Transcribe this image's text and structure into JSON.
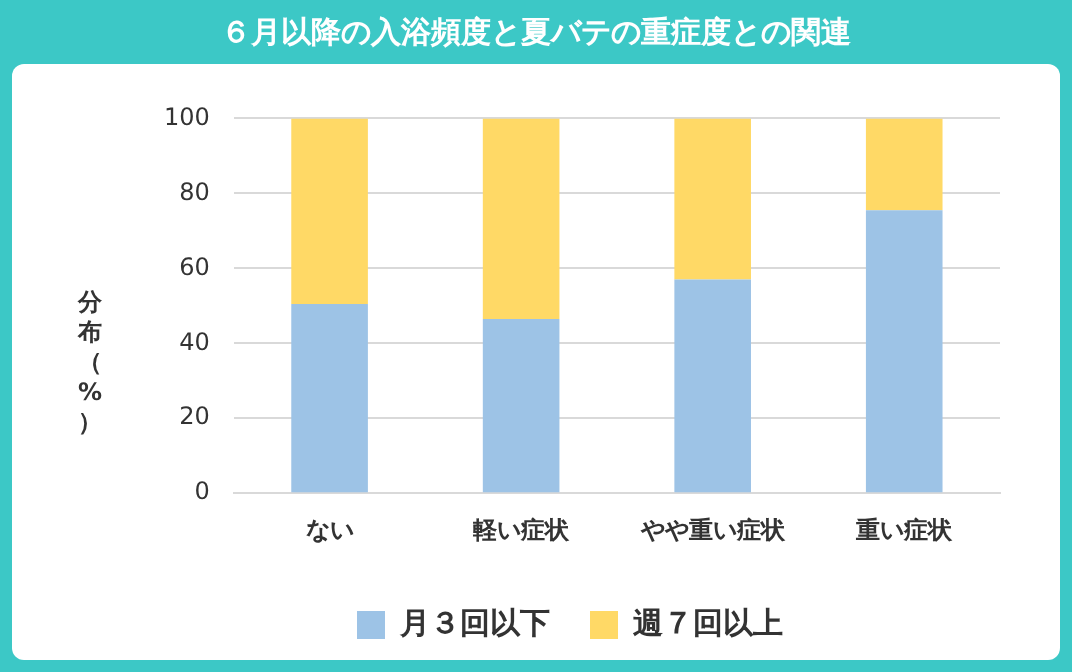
{
  "chart_data": {
    "type": "bar",
    "title": "６月以降の入浴頻度と夏バテの重症度との関連",
    "ylabel": "分布（%）",
    "categories": [
      "ない",
      "軽い症状",
      "やや重い症状",
      "重い症状"
    ],
    "stacked": true,
    "series": [
      {
        "name": "月３回以下",
        "color": "#9dc3e6",
        "values": [
          50.5,
          46.5,
          57,
          75.5
        ]
      },
      {
        "name": "週７回以上",
        "color": "#ffd966",
        "values": [
          49.5,
          53.5,
          43,
          24.5
        ]
      }
    ],
    "ylim": [
      0,
      100
    ],
    "yticks": [
      0,
      20,
      40,
      60,
      80,
      100
    ],
    "grid": "y",
    "legend": "bottom"
  }
}
